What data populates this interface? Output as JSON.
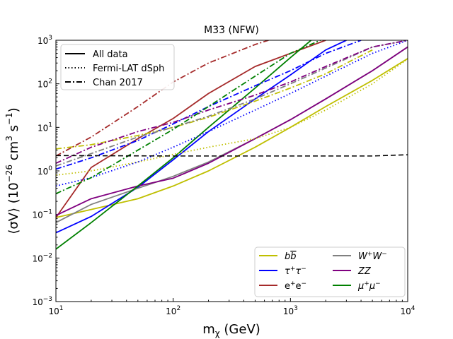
{
  "chart_data": {
    "type": "line",
    "title": "M33 (NFW)",
    "xlabel": "m",
    "xlabel_sub": "χ",
    "xlabel_unit": " (GeV)",
    "ylabel": "⟨σV⟩ (10",
    "ylabel_exp1": "−26",
    "ylabel_mid": " cm",
    "ylabel_exp2": "3",
    "ylabel_mid2": " s",
    "ylabel_exp3": "−1",
    "ylabel_end": ")",
    "x_scale": "log",
    "y_scale": "log",
    "xlim": [
      10,
      10000
    ],
    "ylim": [
      0.001,
      1000
    ],
    "x_ticks": [
      {
        "value": 10,
        "base": "10",
        "exp": "1"
      },
      {
        "value": 100,
        "base": "10",
        "exp": "2"
      },
      {
        "value": 1000,
        "base": "10",
        "exp": "3"
      },
      {
        "value": 10000,
        "base": "10",
        "exp": "4"
      }
    ],
    "y_ticks": [
      {
        "value": 0.001,
        "base": "10",
        "exp": "−3"
      },
      {
        "value": 0.01,
        "base": "10",
        "exp": "−2"
      },
      {
        "value": 0.1,
        "base": "10",
        "exp": "−1"
      },
      {
        "value": 1,
        "base": "10",
        "exp": "0"
      },
      {
        "value": 10,
        "base": "10",
        "exp": "1"
      },
      {
        "value": 100,
        "base": "10",
        "exp": "2"
      },
      {
        "value": 1000,
        "base": "10",
        "exp": "3"
      }
    ],
    "colors": {
      "bb": "#bfbf00",
      "tautau": "#0000ff",
      "ee": "#a52a2a",
      "ww": "#808080",
      "zz": "#800080",
      "mumu": "#008000",
      "thermal": "#000000"
    },
    "style_legend": [
      {
        "label": "All data",
        "dash": "solid"
      },
      {
        "label": "Fermi-LAT dSph",
        "dash": "dotted"
      },
      {
        "label": "Chan 2017",
        "dash": "dashdot"
      }
    ],
    "channel_legend": [
      {
        "key": "bb",
        "label": "b",
        "bar": "b",
        "sup": ""
      },
      {
        "key": "ww",
        "label": "W",
        "sup": "+",
        "label2": "W",
        "sup2": "−"
      },
      {
        "key": "tautau",
        "label": "τ",
        "sup": "+",
        "label2": "τ",
        "sup2": "−"
      },
      {
        "key": "zz",
        "label": "ZZ"
      },
      {
        "key": "ee",
        "label": "e",
        "sup": "+",
        "label2": "e",
        "sup2": "−"
      },
      {
        "key": "mumu",
        "label": "μ",
        "sup": "+",
        "label2": "μ",
        "sup2": "−"
      }
    ],
    "series": [
      {
        "name": "b b̄ (All data)",
        "channel": "bb",
        "dash": "solid",
        "x": [
          10,
          20,
          50,
          100,
          200,
          500,
          1000,
          2000,
          5000,
          10000
        ],
        "y": [
          0.085,
          0.13,
          0.23,
          0.45,
          1.0,
          3.5,
          10,
          30,
          120,
          380
        ]
      },
      {
        "name": "τ⁺τ⁻ (All data)",
        "channel": "tautau",
        "dash": "solid",
        "x": [
          10,
          20,
          50,
          100,
          200,
          500,
          1000,
          2000,
          3000
        ],
        "y": [
          0.038,
          0.09,
          0.42,
          1.8,
          8,
          45,
          160,
          600,
          1000
        ]
      },
      {
        "name": "e⁺e⁻ (All data)",
        "channel": "ee",
        "dash": "solid",
        "x": [
          10,
          20,
          50,
          100,
          200,
          500,
          1000,
          2000
        ],
        "y": [
          0.085,
          1.2,
          5.5,
          16,
          60,
          250,
          500,
          1000
        ]
      },
      {
        "name": "W⁺W⁻ (All data)",
        "channel": "ww",
        "dash": "solid",
        "x": [
          10,
          20,
          50,
          100,
          200,
          500,
          1000,
          2000,
          5000,
          10000
        ],
        "y": [
          0.065,
          0.17,
          0.4,
          0.75,
          1.6,
          5.5,
          15,
          45,
          200,
          700
        ]
      },
      {
        "name": "ZZ (All data)",
        "channel": "zz",
        "dash": "solid",
        "x": [
          10,
          20,
          50,
          100,
          200,
          500,
          1000,
          2000,
          5000,
          10000
        ],
        "y": [
          0.095,
          0.23,
          0.45,
          0.68,
          1.5,
          5.5,
          15,
          45,
          200,
          700
        ]
      },
      {
        "name": "μ⁺μ⁻ (All data)",
        "channel": "mumu",
        "dash": "solid",
        "x": [
          10,
          20,
          50,
          100,
          200,
          500,
          1000,
          1500
        ],
        "y": [
          0.016,
          0.065,
          0.45,
          2.0,
          10,
          80,
          400,
          1000
        ]
      },
      {
        "name": "b b̄ (Fermi-LAT dSph)",
        "channel": "bb",
        "dash": "dotted",
        "x": [
          10,
          20,
          50,
          100,
          200,
          500,
          1000,
          2000,
          5000,
          10000
        ],
        "y": [
          0.8,
          1.0,
          1.6,
          2.4,
          3.5,
          5.5,
          10,
          25,
          100,
          370
        ]
      },
      {
        "name": "τ⁺τ⁻ (Fermi-LAT dSph)",
        "channel": "tautau",
        "dash": "dotted",
        "x": [
          10,
          20,
          50,
          100,
          200,
          500,
          1000,
          2000,
          5000,
          10000
        ],
        "y": [
          0.45,
          0.7,
          1.6,
          3.5,
          8,
          25,
          60,
          150,
          500,
          1000
        ]
      },
      {
        "name": "b b̄ (Chan 2017)",
        "channel": "bb",
        "dash": "dashdot",
        "x": [
          10,
          20,
          50,
          100,
          200,
          500,
          1000,
          2000,
          5000
        ],
        "y": [
          3.2,
          4.0,
          6.5,
          10,
          17,
          40,
          80,
          170,
          600
        ]
      },
      {
        "name": "τ⁺τ⁻ (Chan 2017)",
        "channel": "tautau",
        "dash": "dashdot",
        "x": [
          10,
          20,
          50,
          100,
          200,
          500,
          1000,
          2000,
          4000
        ],
        "y": [
          1.1,
          2.0,
          5.0,
          12,
          30,
          90,
          200,
          500,
          1000
        ]
      },
      {
        "name": "e⁺e⁻ (Chan 2017)",
        "channel": "ee",
        "dash": "dashdot",
        "x": [
          10,
          20,
          50,
          100,
          200,
          500,
          650
        ],
        "y": [
          2.2,
          6,
          30,
          110,
          300,
          800,
          1000
        ]
      },
      {
        "name": "W⁺W⁻ (Chan 2017)",
        "channel": "ww",
        "dash": "dashdot",
        "x": [
          10,
          20,
          50,
          100,
          200,
          500,
          1000,
          2000,
          5000,
          10000
        ],
        "y": [
          1.3,
          2.5,
          6,
          10,
          18,
          45,
          100,
          230,
          700,
          1000
        ]
      },
      {
        "name": "ZZ (Chan 2017)",
        "channel": "zz",
        "dash": "dashdot",
        "x": [
          10,
          20,
          50,
          100,
          200,
          500,
          1000,
          2000,
          5000,
          10000
        ],
        "y": [
          1.5,
          3.5,
          8,
          13,
          25,
          55,
          110,
          250,
          700,
          1000
        ]
      },
      {
        "name": "μ⁺μ⁻ (Chan 2017)",
        "channel": "mumu",
        "dash": "dashdot",
        "x": [
          10,
          20,
          50,
          100,
          200,
          500,
          1000,
          1800
        ],
        "y": [
          0.3,
          0.7,
          3,
          9,
          30,
          150,
          500,
          1000
        ]
      },
      {
        "name": "Thermal relic",
        "channel": "thermal",
        "dash": "dashed",
        "x": [
          10,
          100,
          1000,
          5000,
          10000
        ],
        "y": [
          2.25,
          2.2,
          2.2,
          2.2,
          2.35
        ]
      }
    ]
  }
}
